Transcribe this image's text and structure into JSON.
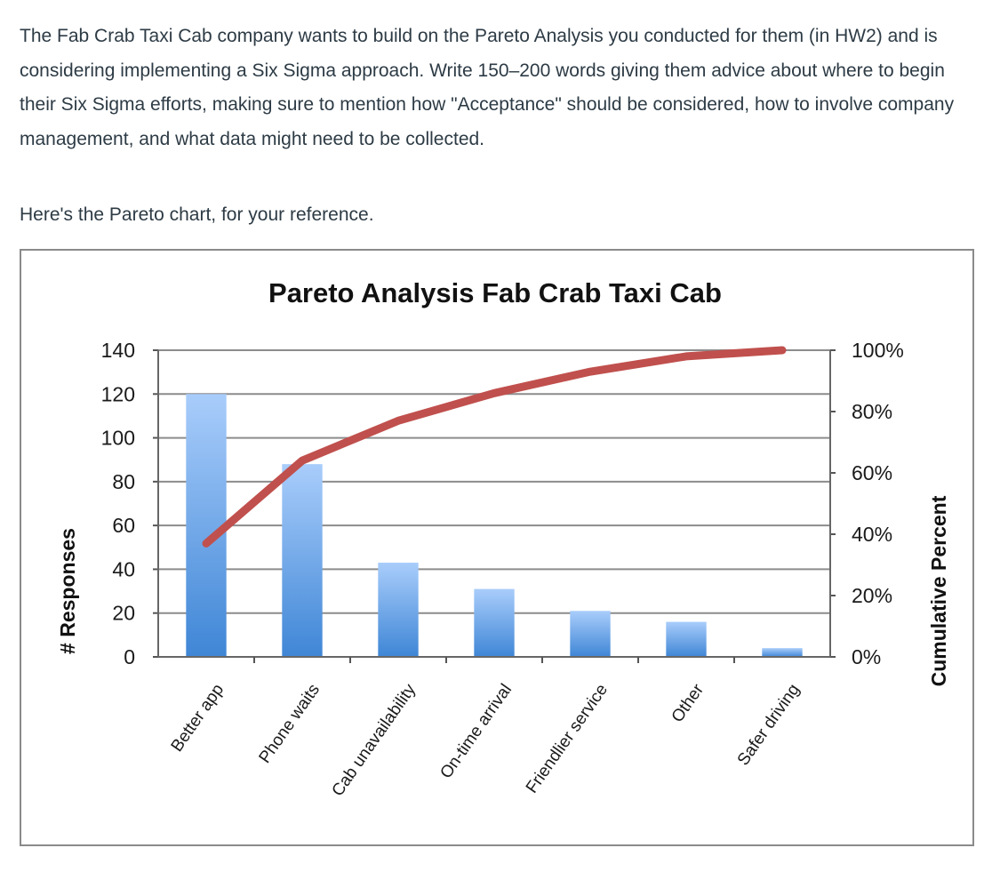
{
  "prompt": {
    "text": "The Fab Crab Taxi Cab company wants to build on the Pareto Analysis you conducted for them (in HW2) and is considering implementing a Six Sigma approach. Write 150–200 words giving them advice about where to begin their Six Sigma efforts, making sure to mention how \"Acceptance\" should be considered, how to involve company management, and what data might need to be collected.",
    "reference_line": "Here's the Pareto chart, for your reference."
  },
  "chart_data": {
    "type": "bar",
    "title": "Pareto Analysis Fab Crab Taxi Cab",
    "ylabel": "# Responses",
    "y2label": "Cumulative Percent",
    "xlabel": "",
    "categories": [
      "Better app",
      "Phone waits",
      "Cab unavailability",
      "On-time arrival",
      "Friendlier service",
      "Other",
      "Safer driving"
    ],
    "series": [
      {
        "values": [
          120,
          88,
          43,
          31,
          21,
          16,
          4
        ]
      }
    ],
    "line_series": {
      "axis": "secondary",
      "values": [
        37,
        64,
        77,
        86,
        93,
        98,
        100
      ]
    },
    "ylim": [
      0,
      140
    ],
    "yticks": [
      "0",
      "20",
      "40",
      "60",
      "80",
      "100",
      "120",
      "140"
    ],
    "y2lim": [
      0,
      100
    ],
    "y2ticks": [
      "0%",
      "20%",
      "40%",
      "60%",
      "80%",
      "100%"
    ],
    "grid": true,
    "legend": "none",
    "colors": {
      "bar_top": "#a9cdfb",
      "bar_bottom": "#3f86d6",
      "line": "#c0504d",
      "grid": "#8c8c8c"
    }
  }
}
